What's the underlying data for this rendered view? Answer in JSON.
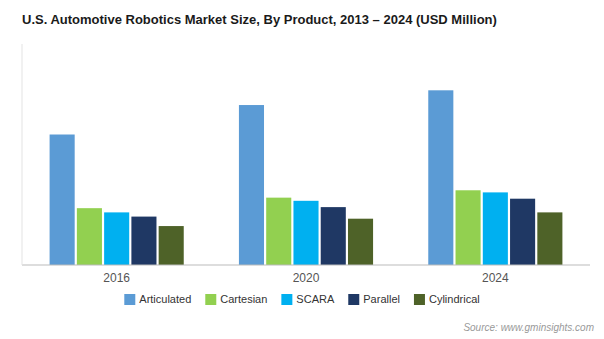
{
  "chart_data": {
    "type": "bar",
    "title": "U.S. Automotive Robotics Market Size, By Product, 2013 – 2024 (USD Million)",
    "categories": [
      "2016",
      "2020",
      "2024"
    ],
    "series": [
      {
        "name": "Articulated",
        "color": "#5b9bd5",
        "values": [
          620,
          760,
          830
        ]
      },
      {
        "name": "Cartesian",
        "color": "#92d050",
        "values": [
          270,
          320,
          355
        ]
      },
      {
        "name": "SCARA",
        "color": "#00b0f0",
        "values": [
          250,
          305,
          345
        ]
      },
      {
        "name": "Parallel",
        "color": "#1f3864",
        "values": [
          230,
          275,
          315
        ]
      },
      {
        "name": "Cylindrical",
        "color": "#4e6228",
        "values": [
          185,
          220,
          250
        ]
      }
    ],
    "ylim": [
      0,
      1050
    ],
    "yticks": [],
    "tick_labels": "x",
    "grid": false,
    "legend": "bottom",
    "annotations": [
      "Source: www.gminsights.com"
    ]
  }
}
